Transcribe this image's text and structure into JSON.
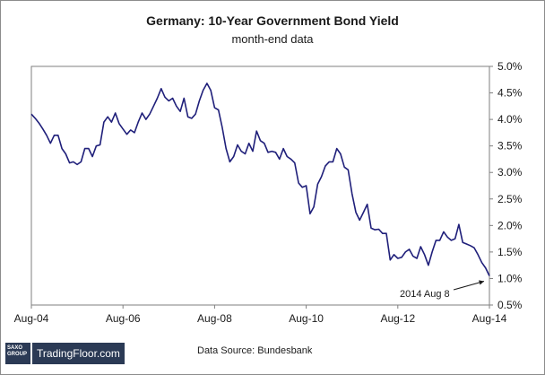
{
  "chart_data": {
    "type": "line",
    "title": "Germany: 10-Year Government Bond Yield",
    "subtitle": "month-end data",
    "xlabel": "",
    "ylabel": "",
    "x_tick_labels": [
      "Aug-04",
      "Aug-06",
      "Aug-08",
      "Aug-10",
      "Aug-12",
      "Aug-14"
    ],
    "y_tick_labels": [
      "0.5%",
      "1.0%",
      "1.5%",
      "2.0%",
      "2.5%",
      "3.0%",
      "3.5%",
      "4.0%",
      "4.5%",
      "5.0%"
    ],
    "ylim": [
      0.5,
      5.0
    ],
    "xlim": [
      "Aug-04",
      "Aug-14"
    ],
    "y_axis_side": "right",
    "grid": false,
    "line_color": "#1f1f7a",
    "series": [
      {
        "x": [
          "2004-08",
          "2004-09",
          "2004-10",
          "2004-11",
          "2004-12",
          "2005-01",
          "2005-02",
          "2005-03",
          "2005-04",
          "2005-05",
          "2005-06",
          "2005-07",
          "2005-08",
          "2005-09",
          "2005-10",
          "2005-11",
          "2005-12",
          "2006-01",
          "2006-02",
          "2006-03",
          "2006-04",
          "2006-05",
          "2006-06",
          "2006-07",
          "2006-08",
          "2006-09",
          "2006-10",
          "2006-11",
          "2006-12",
          "2007-01",
          "2007-02",
          "2007-03",
          "2007-04",
          "2007-05",
          "2007-06",
          "2007-07",
          "2007-08",
          "2007-09",
          "2007-10",
          "2007-11",
          "2007-12",
          "2008-01",
          "2008-02",
          "2008-03",
          "2008-04",
          "2008-05",
          "2008-06",
          "2008-07",
          "2008-08",
          "2008-09",
          "2008-10",
          "2008-11",
          "2008-12",
          "2009-01",
          "2009-02",
          "2009-03",
          "2009-04",
          "2009-05",
          "2009-06",
          "2009-07",
          "2009-08",
          "2009-09",
          "2009-10",
          "2009-11",
          "2009-12",
          "2010-01",
          "2010-02",
          "2010-03",
          "2010-04",
          "2010-05",
          "2010-06",
          "2010-07",
          "2010-08",
          "2010-09",
          "2010-10",
          "2010-11",
          "2010-12",
          "2011-01",
          "2011-02",
          "2011-03",
          "2011-04",
          "2011-05",
          "2011-06",
          "2011-07",
          "2011-08",
          "2011-09",
          "2011-10",
          "2011-11",
          "2011-12",
          "2012-01",
          "2012-02",
          "2012-03",
          "2012-04",
          "2012-05",
          "2012-06",
          "2012-07",
          "2012-08",
          "2012-09",
          "2012-10",
          "2012-11",
          "2012-12",
          "2013-01",
          "2013-02",
          "2013-03",
          "2013-04",
          "2013-05",
          "2013-06",
          "2013-07",
          "2013-08",
          "2013-09",
          "2013-10",
          "2013-11",
          "2013-12",
          "2014-01",
          "2014-02",
          "2014-03",
          "2014-04",
          "2014-05",
          "2014-06",
          "2014-07",
          "2014-08"
        ],
        "values": [
          4.1,
          4.02,
          3.93,
          3.82,
          3.7,
          3.55,
          3.7,
          3.7,
          3.45,
          3.35,
          3.18,
          3.2,
          3.15,
          3.2,
          3.45,
          3.45,
          3.3,
          3.5,
          3.52,
          3.95,
          4.05,
          3.95,
          4.12,
          3.92,
          3.82,
          3.72,
          3.8,
          3.75,
          3.95,
          4.12,
          4.0,
          4.1,
          4.25,
          4.4,
          4.58,
          4.42,
          4.35,
          4.4,
          4.25,
          4.15,
          4.4,
          4.05,
          4.02,
          4.1,
          4.35,
          4.55,
          4.68,
          4.55,
          4.22,
          4.18,
          3.85,
          3.45,
          3.2,
          3.3,
          3.52,
          3.4,
          3.35,
          3.55,
          3.4,
          3.78,
          3.6,
          3.55,
          3.38,
          3.4,
          3.38,
          3.25,
          3.45,
          3.3,
          3.25,
          3.18,
          2.8,
          2.72,
          2.75,
          2.22,
          2.35,
          2.78,
          2.92,
          3.12,
          3.2,
          3.2,
          3.45,
          3.35,
          3.1,
          3.05,
          2.6,
          2.25,
          2.1,
          2.25,
          2.4,
          1.95,
          1.92,
          1.93,
          1.85,
          1.85,
          1.35,
          1.45,
          1.38,
          1.4,
          1.5,
          1.55,
          1.42,
          1.38,
          1.6,
          1.45,
          1.25,
          1.5,
          1.72,
          1.72,
          1.88,
          1.78,
          1.72,
          1.75,
          2.02,
          1.68,
          1.65,
          1.62,
          1.58,
          1.45,
          1.3,
          1.2,
          1.05
        ]
      }
    ],
    "annotations": [
      {
        "text": "2014 Aug 8"
      }
    ]
  },
  "footer": {
    "source": "Data Source: Bundesbank",
    "logo_brand_line1": "SAXO",
    "logo_brand_line2": "GROUP",
    "logo_site": "TradingFloor.com"
  }
}
